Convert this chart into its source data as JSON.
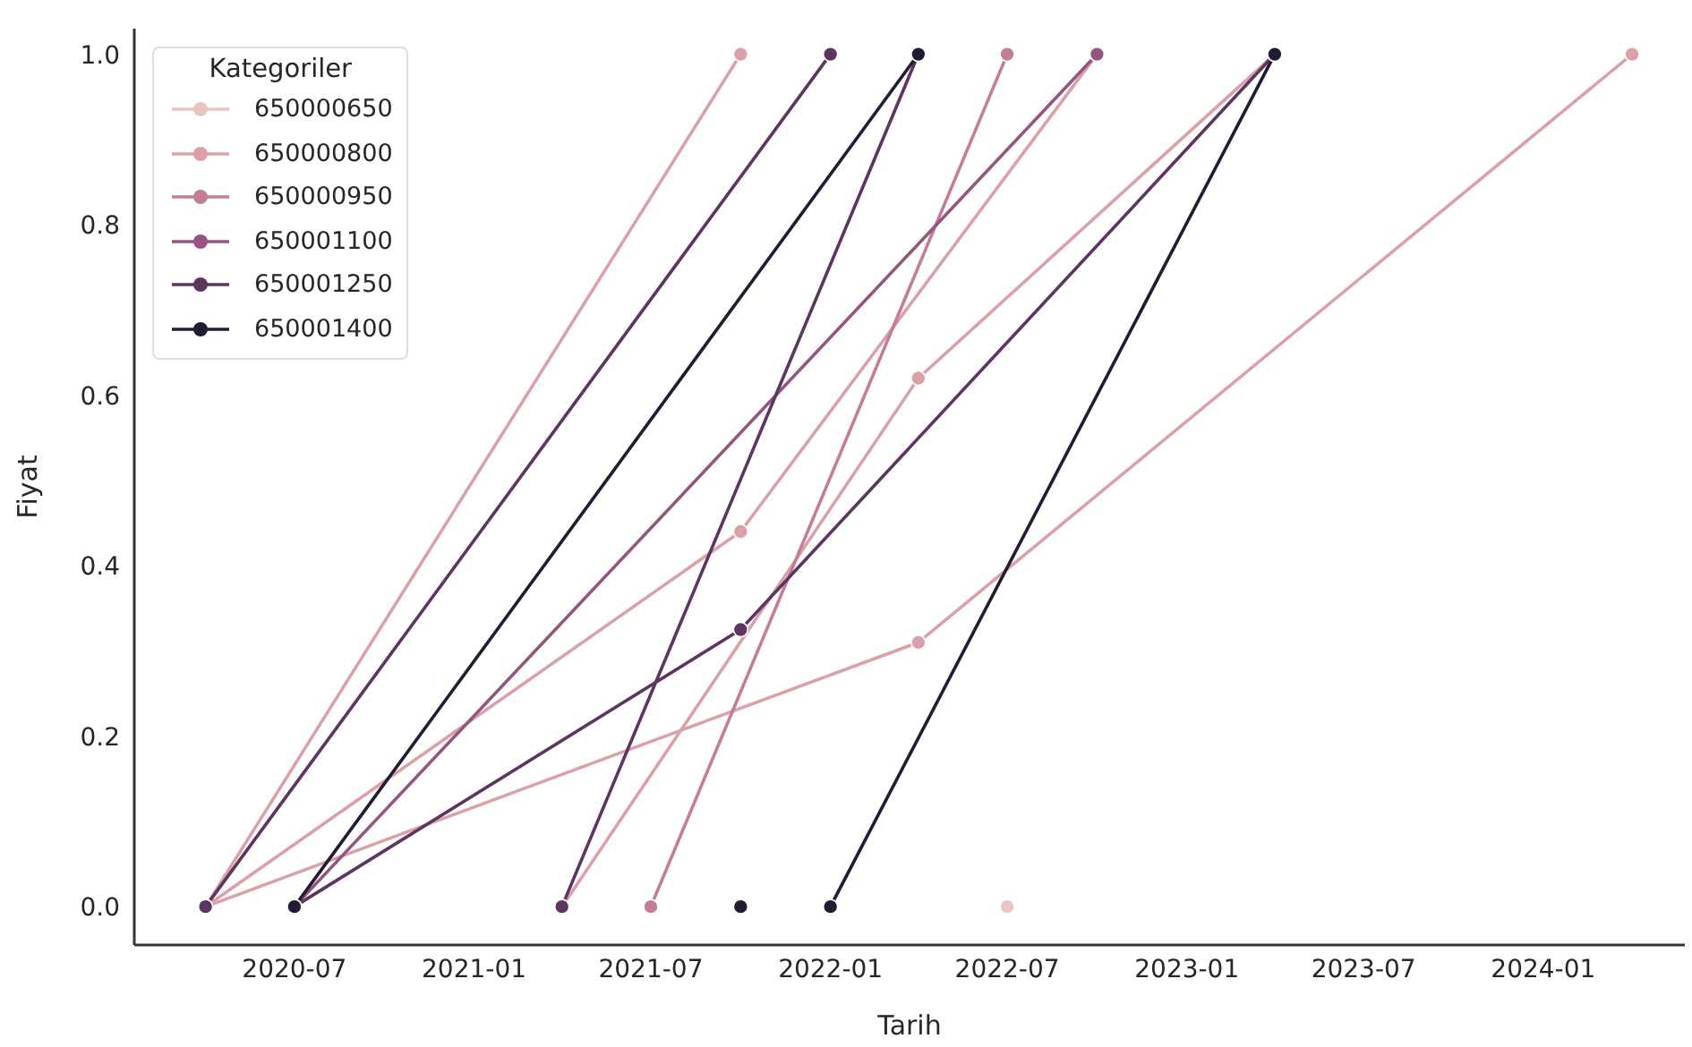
{
  "chart_data": {
    "type": "line",
    "xlabel": "Tarih",
    "ylabel": "Fiyat",
    "legend_title": "Kategoriler",
    "legend": "top left",
    "marker": "circle",
    "line_style": "solid",
    "xlim": [
      "2020-01-19",
      "2024-05-25"
    ],
    "xticks": [
      "2020-07",
      "2021-01",
      "2021-07",
      "2022-01",
      "2022-07",
      "2023-01",
      "2023-07",
      "2024-01"
    ],
    "ylim": [
      -0.045,
      1.03
    ],
    "yticks": [
      {
        "value": 0,
        "label": "0.0"
      },
      {
        "value": 0.2,
        "label": "0.2"
      },
      {
        "value": 0.4,
        "label": "0.4"
      },
      {
        "value": 0.6,
        "label": "0.6"
      },
      {
        "value": 0.8,
        "label": "0.8"
      },
      {
        "value": 1,
        "label": "1.0"
      }
    ],
    "series": [
      {
        "name": "650000650",
        "color": "#ebc6bf",
        "x": [
          "2022-07"
        ],
        "values": [
          0
        ]
      },
      {
        "name": "650000800",
        "color": "#dca1a8",
        "x": [
          "2020-04",
          "2021-10"
        ],
        "values": [
          0,
          1
        ]
      },
      {
        "color": "#dca1a8",
        "x": [
          "2020-04",
          "2021-10",
          "2022-10"
        ],
        "values": [
          0,
          0.44,
          1
        ]
      },
      {
        "color": "#dca1a8",
        "x": [
          "2020-04",
          "2022-04",
          "2024-04"
        ],
        "values": [
          0,
          0.31,
          1
        ]
      },
      {
        "color": "#dca1a8",
        "x": [
          "2021-04",
          "2022-04",
          "2023-04"
        ],
        "values": [
          0,
          0.62,
          1
        ]
      },
      {
        "name": "650000950",
        "color": "#c47d99",
        "x": [
          "2021-07",
          "2022-07"
        ],
        "values": [
          0,
          1
        ]
      },
      {
        "name": "650001100",
        "color": "#945680",
        "x": [
          "2020-07",
          "2022-10"
        ],
        "values": [
          0,
          1
        ]
      },
      {
        "name": "650001250",
        "color": "#5c3561",
        "x": [
          "2020-04",
          "2022-01"
        ],
        "values": [
          0,
          1
        ]
      },
      {
        "color": "#5c3561",
        "x": [
          "2021-04",
          "2022-04"
        ],
        "values": [
          0,
          1
        ]
      },
      {
        "color": "#5c3561",
        "x": [
          "2020-07",
          "2021-10",
          "2023-04"
        ],
        "values": [
          0,
          0.325,
          1
        ]
      },
      {
        "name": "650001400",
        "color": "#241a33",
        "x": [
          "2020-07",
          "2022-04"
        ],
        "values": [
          0,
          1
        ]
      },
      {
        "color": "#241a33",
        "x": [
          "2021-10"
        ],
        "values": [
          0
        ]
      },
      {
        "color": "#241a33",
        "x": [
          "2022-01",
          "2023-04"
        ],
        "values": [
          0,
          1
        ]
      }
    ]
  }
}
